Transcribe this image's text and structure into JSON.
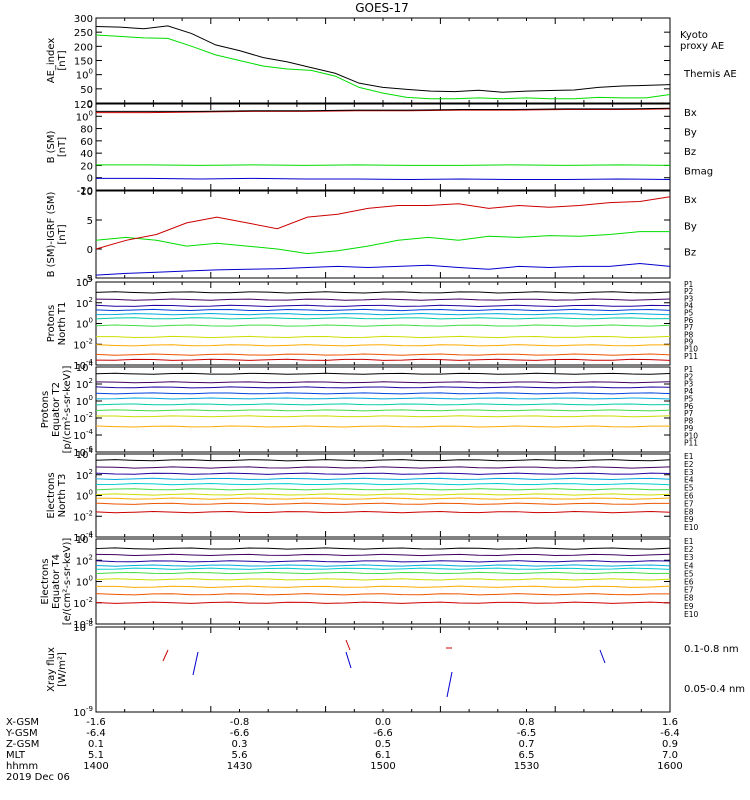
{
  "title": "GOES-17",
  "date": "2019 Dec 06",
  "colors": {
    "black": "#000000",
    "green": "#00dd00",
    "red": "#cc0000",
    "blue": "#0000cc"
  },
  "x_axis": {
    "row_labels": [
      "X-GSM",
      "Y-GSM",
      "Z-GSM",
      "MLT",
      "hhmm"
    ],
    "values": [
      [
        "-1.6",
        "-0.8",
        "0.0",
        "0.8",
        "1.6"
      ],
      [
        "-6.4",
        "-6.6",
        "-6.6",
        "-6.5",
        "-6.4"
      ],
      [
        "0.1",
        "0.3",
        "0.5",
        "0.7",
        "0.9"
      ],
      [
        "5.1",
        "5.6",
        "6.1",
        "6.5",
        "7.0"
      ],
      [
        "1400",
        "1430",
        "1500",
        "1530",
        "1600"
      ]
    ]
  },
  "chart_data": [
    {
      "type": "line",
      "ylabel": "AE_index\n[nT]",
      "ylim": [
        0,
        300
      ],
      "yticks": [
        "0",
        "50",
        "100",
        "150",
        "200",
        "250",
        "300"
      ],
      "x": [
        0,
        5,
        10,
        15,
        20,
        25,
        30,
        35,
        40,
        45,
        50,
        55,
        60,
        65,
        70,
        75,
        80,
        85,
        90,
        95,
        100,
        105,
        110,
        115,
        120
      ],
      "series": [
        {
          "name": "Themis AE",
          "color": "black",
          "values": [
            270,
            268,
            262,
            272,
            245,
            205,
            185,
            160,
            145,
            125,
            105,
            70,
            55,
            48,
            42,
            40,
            45,
            38,
            42,
            44,
            46,
            55,
            60,
            62,
            65
          ]
        },
        {
          "name": "Kyoto\nproxy AE",
          "color": "green",
          "values": [
            240,
            235,
            230,
            228,
            200,
            170,
            150,
            130,
            120,
            115,
            95,
            55,
            35,
            20,
            15,
            15,
            18,
            15,
            18,
            15,
            15,
            20,
            18,
            18,
            30
          ]
        }
      ]
    },
    {
      "type": "line",
      "ylabel": "B (SM)\n[nT]",
      "ylim": [
        -20,
        120
      ],
      "yticks": [
        "-20",
        "0",
        "20",
        "40",
        "60",
        "80",
        "100",
        "120"
      ],
      "series": [
        {
          "name": "Bx",
          "color": "blue",
          "values": [
            -1,
            -1,
            -2,
            -1,
            -2,
            -2,
            -3,
            -2,
            -3,
            -3,
            -2,
            -3
          ]
        },
        {
          "name": "By",
          "color": "green",
          "values": [
            21,
            21,
            20,
            21,
            20,
            21,
            20,
            20,
            21,
            20,
            21,
            20
          ]
        },
        {
          "name": "Bz",
          "color": "red",
          "values": [
            106,
            106,
            107,
            108,
            108,
            109,
            109,
            110,
            110,
            111,
            111,
            112
          ]
        },
        {
          "name": "Bmag",
          "color": "black",
          "values": [
            108,
            108,
            108,
            109,
            109,
            110,
            110,
            111,
            111,
            112,
            112,
            113
          ]
        }
      ]
    },
    {
      "type": "line",
      "ylabel": "B (SM)-IGRF (SM)\n[nT]",
      "ylim": [
        -5,
        10
      ],
      "yticks": [
        "-5",
        "0",
        "5",
        "10"
      ],
      "series": [
        {
          "name": "Bx",
          "color": "blue",
          "values": [
            -4.5,
            -4.2,
            -4,
            -3.8,
            -3.6,
            -3.5,
            -3.4,
            -3.2,
            -3,
            -3.2,
            -3,
            -2.8,
            -3.2,
            -3.5,
            -3,
            -3.2,
            -3,
            -3,
            -2.5,
            -3
          ]
        },
        {
          "name": "By",
          "color": "green",
          "values": [
            1.5,
            2,
            1.5,
            0.5,
            1,
            0.5,
            0,
            -0.8,
            -0.3,
            0.5,
            1.5,
            2,
            1.5,
            2.2,
            2,
            2.3,
            2.2,
            2.5,
            3,
            3
          ]
        },
        {
          "name": "Bz",
          "color": "red",
          "values": [
            0,
            1.5,
            2.5,
            4.5,
            5.5,
            4.5,
            3.5,
            5.5,
            6,
            7,
            7.5,
            7.5,
            7.8,
            7,
            7.5,
            7.2,
            7.5,
            8,
            8.2,
            9
          ]
        }
      ]
    },
    {
      "type": "line",
      "ylabel": "Protons\nNorth T1",
      "ylim": [
        "10^-4",
        "10^4"
      ],
      "yticks": [
        "10-4",
        "10-2",
        "100",
        "102",
        "104"
      ],
      "series": [
        {
          "name": "P1",
          "color": "#000000",
          "values": [
            3
          ]
        },
        {
          "name": "P2",
          "color": "#400060",
          "values": [
            2.3
          ]
        },
        {
          "name": "P3",
          "color": "#2000a0",
          "values": [
            1.7
          ]
        },
        {
          "name": "P4",
          "color": "#0044dd",
          "values": [
            1.3
          ]
        },
        {
          "name": "P5",
          "color": "#00aadd",
          "values": [
            0.9
          ]
        },
        {
          "name": "P6",
          "color": "#00ccaa",
          "values": [
            0.5
          ]
        },
        {
          "name": "P7",
          "color": "#44dd44",
          "values": [
            -0.2
          ]
        },
        {
          "name": "P8",
          "color": "#ccdd00",
          "values": [
            -1.3
          ]
        },
        {
          "name": "P9",
          "color": "#ffaa00",
          "values": [
            -2.1
          ]
        },
        {
          "name": "P10",
          "color": "#ee5500",
          "values": [
            -3
          ]
        },
        {
          "name": "P11",
          "color": "#cc0000",
          "values": [
            -3.5
          ]
        }
      ]
    },
    {
      "type": "line",
      "ylabel": "Protons\nEquator T2\n[p/(cm²-s-sr-keV)]",
      "ylim": [
        "10^-6",
        "10^4"
      ],
      "yticks": [
        "10-6",
        "10-4",
        "10-2",
        "100",
        "102",
        "104"
      ],
      "series": [
        {
          "name": "P1",
          "color": "#000000",
          "values": [
            3.2
          ]
        },
        {
          "name": "P2",
          "color": "#400060",
          "values": [
            2.2
          ]
        },
        {
          "name": "P3",
          "color": "#2000a0",
          "values": [
            1.6
          ]
        },
        {
          "name": "P4",
          "color": "#0044dd",
          "values": [
            0.9
          ]
        },
        {
          "name": "P5",
          "color": "#00aadd",
          "values": [
            0.3
          ]
        },
        {
          "name": "P6",
          "color": "#00ccaa",
          "values": [
            -0.4
          ]
        },
        {
          "name": "P7",
          "color": "#44dd44",
          "values": [
            -1.1
          ]
        },
        {
          "name": "P8",
          "color": "#ccdd00",
          "values": [
            -1.8
          ]
        },
        {
          "name": "P9",
          "color": "#ffaa00",
          "values": [
            -3
          ]
        },
        {
          "name": "P10",
          "color": "#ee5500",
          "values": []
        },
        {
          "name": "P11",
          "color": "#cc0000",
          "values": []
        }
      ]
    },
    {
      "type": "line",
      "ylabel": "Electrons\nNorth T3",
      "ylim": [
        "10^-4",
        "10^4"
      ],
      "yticks": [
        "10-4",
        "10-2",
        "100",
        "102",
        "104"
      ],
      "series": [
        {
          "name": "E1",
          "color": "#000000",
          "values": [
            3.4
          ]
        },
        {
          "name": "E2",
          "color": "#400060",
          "values": [
            2.7
          ]
        },
        {
          "name": "E3",
          "color": "#2000a0",
          "values": [
            2.1
          ]
        },
        {
          "name": "E4",
          "color": "#00aadd",
          "values": [
            1.6
          ]
        },
        {
          "name": "E5",
          "color": "#00cccc",
          "values": [
            1.1
          ]
        },
        {
          "name": "E6",
          "color": "#44dd44",
          "values": [
            0.6
          ]
        },
        {
          "name": "E7",
          "color": "#ccdd00",
          "values": [
            0.1
          ]
        },
        {
          "name": "E8",
          "color": "#ffaa00",
          "values": [
            -0.3
          ]
        },
        {
          "name": "E9",
          "color": "#ee5500",
          "values": [
            -0.8
          ]
        },
        {
          "name": "E10",
          "color": "#cc0000",
          "values": [
            -1.6
          ]
        }
      ]
    },
    {
      "type": "line",
      "ylabel": "Electrons\nEquator T4\n[e/(cm²-s-sr-keV)]",
      "ylim": [
        "10^-4",
        "10^4"
      ],
      "yticks": [
        "10-4",
        "10-2",
        "100",
        "102",
        "104"
      ],
      "series": [
        {
          "name": "E1",
          "color": "#000000",
          "values": [
            3.1
          ]
        },
        {
          "name": "E2",
          "color": "#400060",
          "values": [
            2.5
          ]
        },
        {
          "name": "E3",
          "color": "#2000a0",
          "values": [
            1.9
          ]
        },
        {
          "name": "E4",
          "color": "#00aadd",
          "values": [
            1.5
          ]
        },
        {
          "name": "E5",
          "color": "#00cccc",
          "values": [
            1.2
          ]
        },
        {
          "name": "E6",
          "color": "#44dd44",
          "values": [
            0.8
          ]
        },
        {
          "name": "E7",
          "color": "#ccdd00",
          "values": [
            0.2
          ]
        },
        {
          "name": "E8",
          "color": "#ffaa00",
          "values": [
            -0.5
          ]
        },
        {
          "name": "E9",
          "color": "#ee5500",
          "values": [
            -1.2
          ]
        },
        {
          "name": "E10",
          "color": "#cc0000",
          "values": [
            -2
          ]
        }
      ]
    },
    {
      "type": "scatter",
      "ylabel": "Xray flux\n[W/m²]",
      "ylim": [
        "10^-9",
        "10^-8"
      ],
      "yticks": [
        "10-9",
        "10-8"
      ],
      "series": [
        {
          "name": "0.1-0.8 nm",
          "color": "red"
        },
        {
          "name": "0.05-0.4 nm",
          "color": "blue"
        }
      ]
    }
  ]
}
